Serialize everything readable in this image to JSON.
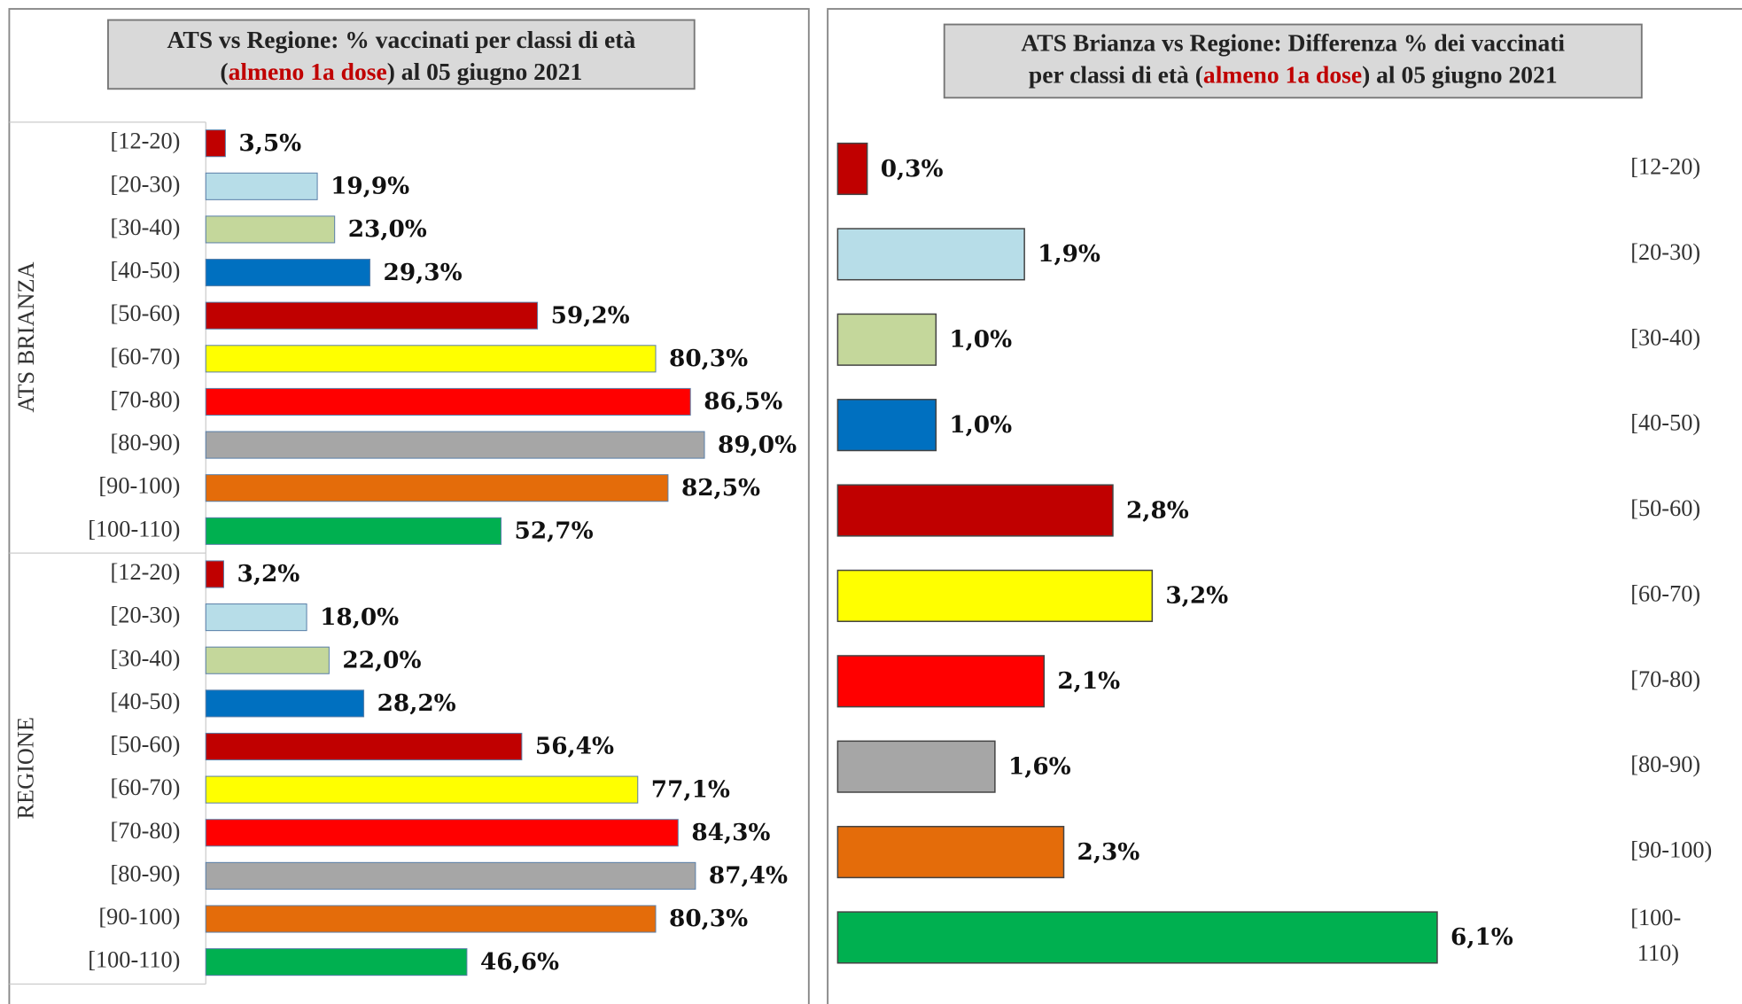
{
  "chart_data": [
    {
      "type": "grouped-hbar",
      "title": [
        "ATS vs Regione: % vaccinati per classi di età",
        "(almeno 1a dose) al 05 giugno 2021"
      ],
      "title_highlight": "almeno 1a dose",
      "highlight_color": "#c00000",
      "categories": [
        "[12-20)",
        "[20-30)",
        "[30-40)",
        "[40-50)",
        "[50-60)",
        "[60-70)",
        "[70-80)",
        "[80-90)",
        "[90-100)",
        "[100-110)"
      ],
      "colors": [
        "#c00000",
        "#b7dde8",
        "#c4d79b",
        "#0070c0",
        "#c00000",
        "#ffff00",
        "#ff0000",
        "#a6a6a6",
        "#e46c0a",
        "#00b050"
      ],
      "xlim": [
        0,
        100
      ],
      "groups": [
        {
          "name": "ATS BRIANZA",
          "values": [
            3.5,
            19.9,
            23.0,
            29.3,
            59.2,
            80.3,
            86.5,
            89.0,
            82.5,
            52.7
          ],
          "value_labels": [
            "3,5%",
            "19,9%",
            "23,0%",
            "29,3%",
            "59,2%",
            "80,3%",
            "86,5%",
            "89,0%",
            "82,5%",
            "52,7%"
          ]
        },
        {
          "name": "REGIONE",
          "values": [
            3.2,
            18.0,
            22.0,
            28.2,
            56.4,
            77.1,
            84.3,
            87.4,
            80.3,
            46.6
          ],
          "value_labels": [
            "3,2%",
            "18,0%",
            "22,0%",
            "28,2%",
            "56,4%",
            "77,1%",
            "84,3%",
            "87,4%",
            "80,3%",
            "46,6%"
          ]
        }
      ]
    },
    {
      "type": "hbar",
      "title": [
        "ATS Brianza vs Regione: Differenza % dei vaccinati",
        "per classi di età (almeno 1a dose) al 05 giugno 2021"
      ],
      "title_highlight": "almeno 1a dose",
      "highlight_color": "#c00000",
      "categories": [
        "[12-20)",
        "[20-30)",
        "[30-40)",
        "[40-50)",
        "[50-60)",
        "[60-70)",
        "[70-80)",
        "[80-90)",
        "[90-100)",
        "[100-110)"
      ],
      "colors": [
        "#c00000",
        "#b7dde8",
        "#c4d79b",
        "#0070c0",
        "#c00000",
        "#ffff00",
        "#ff0000",
        "#a6a6a6",
        "#e46c0a",
        "#00b050"
      ],
      "xlim": [
        0,
        7
      ],
      "values": [
        0.3,
        1.9,
        1.0,
        1.0,
        2.8,
        3.2,
        2.1,
        1.6,
        2.3,
        6.1
      ],
      "value_labels": [
        "0,3%",
        "1,9%",
        "1,0%",
        "1,0%",
        "2,8%",
        "3,2%",
        "2,1%",
        "1,6%",
        "2,3%",
        "6,1%"
      ]
    }
  ]
}
